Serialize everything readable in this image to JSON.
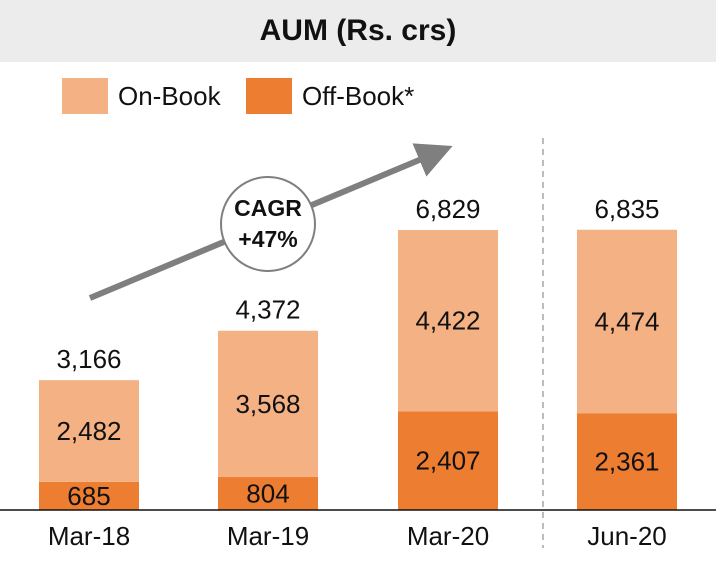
{
  "chart_data": {
    "type": "bar",
    "stacked": true,
    "title": "AUM (Rs. crs)",
    "categories": [
      "Mar-18",
      "Mar-19",
      "Mar-20",
      "Jun-20"
    ],
    "series": [
      {
        "name": "Off-Book*",
        "color": "#ed7d31",
        "values": [
          685,
          804,
          2407,
          2361
        ]
      },
      {
        "name": "On-Book",
        "color": "#f4b183",
        "values": [
          2482,
          3568,
          4422,
          4474
        ]
      }
    ],
    "totals": [
      3166,
      4372,
      6829,
      6835
    ],
    "value_labels": {
      "on_book": [
        "2,482",
        "3,568",
        "4,422",
        "4,474"
      ],
      "off_book": [
        "685",
        "804",
        "2,407",
        "2,361"
      ],
      "totals": [
        "3,166",
        "4,372",
        "6,829",
        "6,835"
      ]
    },
    "ylim": [
      0,
      7400
    ],
    "legend_position": "top-left",
    "grid": false,
    "annotation": {
      "line1": "CAGR",
      "line2": "+47%"
    },
    "separator_before_category": "Jun-20"
  }
}
